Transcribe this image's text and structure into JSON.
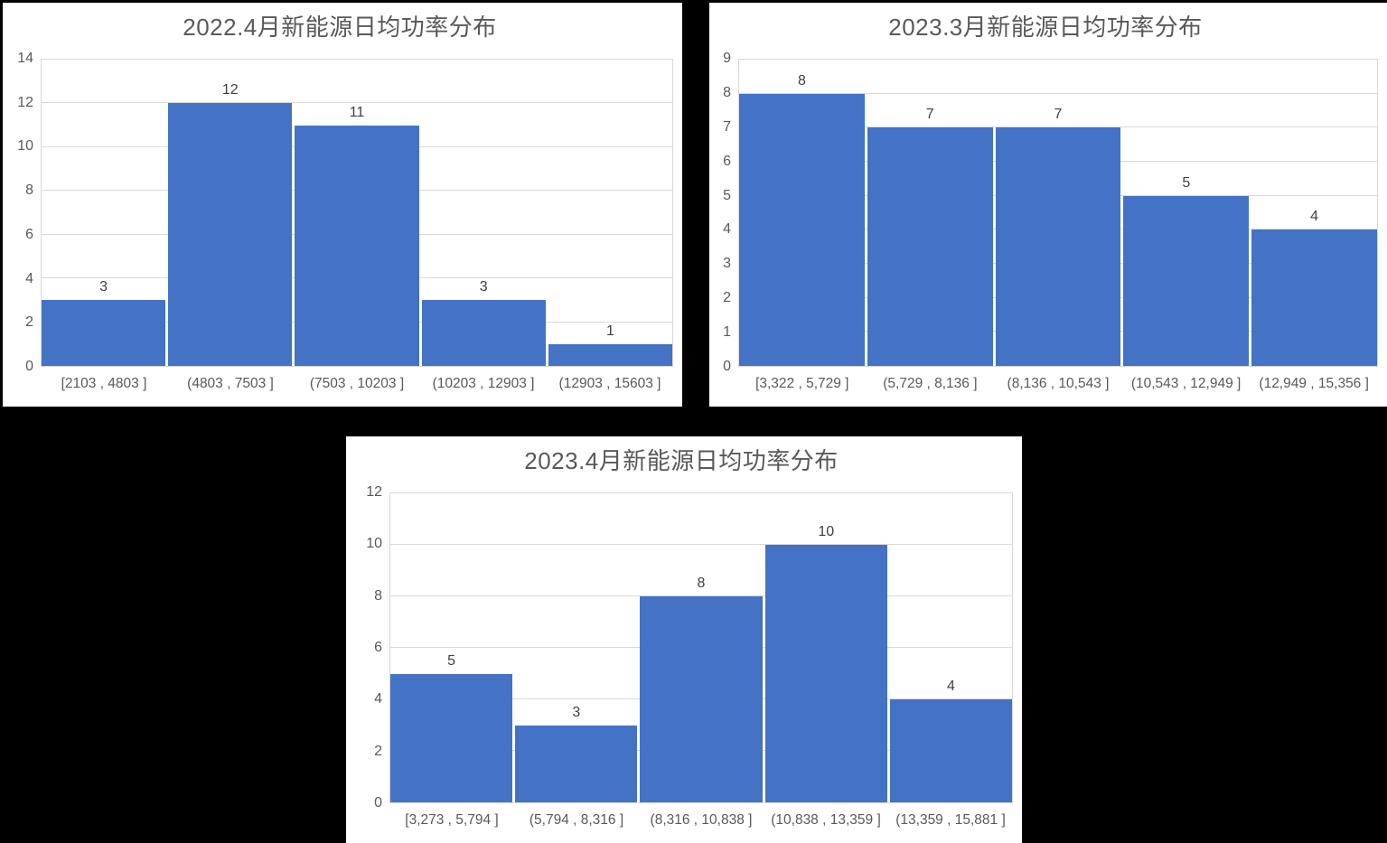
{
  "page": {
    "background_color": "#000000",
    "panel_color": "#ffffff"
  },
  "chart_data": [
    {
      "type": "bar",
      "title": "2022.4月新能源日均功率分布",
      "categories": [
        "[2103 , 4803 ]",
        "(4803 , 7503 ]",
        "(7503 , 10203 ]",
        "(10203 , 12903 ]",
        "(12903 , 15603 ]"
      ],
      "values": [
        3,
        12,
        11,
        3,
        1
      ],
      "xlabel": "",
      "ylabel": "",
      "ylim": [
        0,
        14
      ],
      "ytick_step": 2,
      "grid": "horizontal",
      "legend": "none",
      "bar_color": "#4472c4",
      "gridline_color": "#d9d9d9",
      "title_color": "#595959",
      "tick_label_color": "#595959",
      "data_label_color": "#404040"
    },
    {
      "type": "bar",
      "title": "2023.3月新能源日均功率分布",
      "categories": [
        "[3,322 , 5,729 ]",
        "(5,729 , 8,136 ]",
        "(8,136 , 10,543 ]",
        "(10,543 , 12,949 ]",
        "(12,949 , 15,356 ]"
      ],
      "values": [
        8,
        7,
        7,
        5,
        4
      ],
      "xlabel": "",
      "ylabel": "",
      "ylim": [
        0,
        9
      ],
      "ytick_step": 1,
      "grid": "horizontal",
      "legend": "none",
      "bar_color": "#4472c4",
      "gridline_color": "#d9d9d9",
      "title_color": "#595959",
      "tick_label_color": "#595959",
      "data_label_color": "#404040"
    },
    {
      "type": "bar",
      "title": "2023.4月新能源日均功率分布",
      "categories": [
        "[3,273 , 5,794 ]",
        "(5,794 , 8,316 ]",
        "(8,316 , 10,838 ]",
        "(10,838 , 13,359 ]",
        "(13,359 , 15,881 ]"
      ],
      "values": [
        5,
        3,
        8,
        10,
        4
      ],
      "xlabel": "",
      "ylabel": "",
      "ylim": [
        0,
        12
      ],
      "ytick_step": 2,
      "grid": "horizontal",
      "legend": "none",
      "bar_color": "#4472c4",
      "gridline_color": "#d9d9d9",
      "title_color": "#595959",
      "tick_label_color": "#595959",
      "data_label_color": "#404040"
    }
  ]
}
